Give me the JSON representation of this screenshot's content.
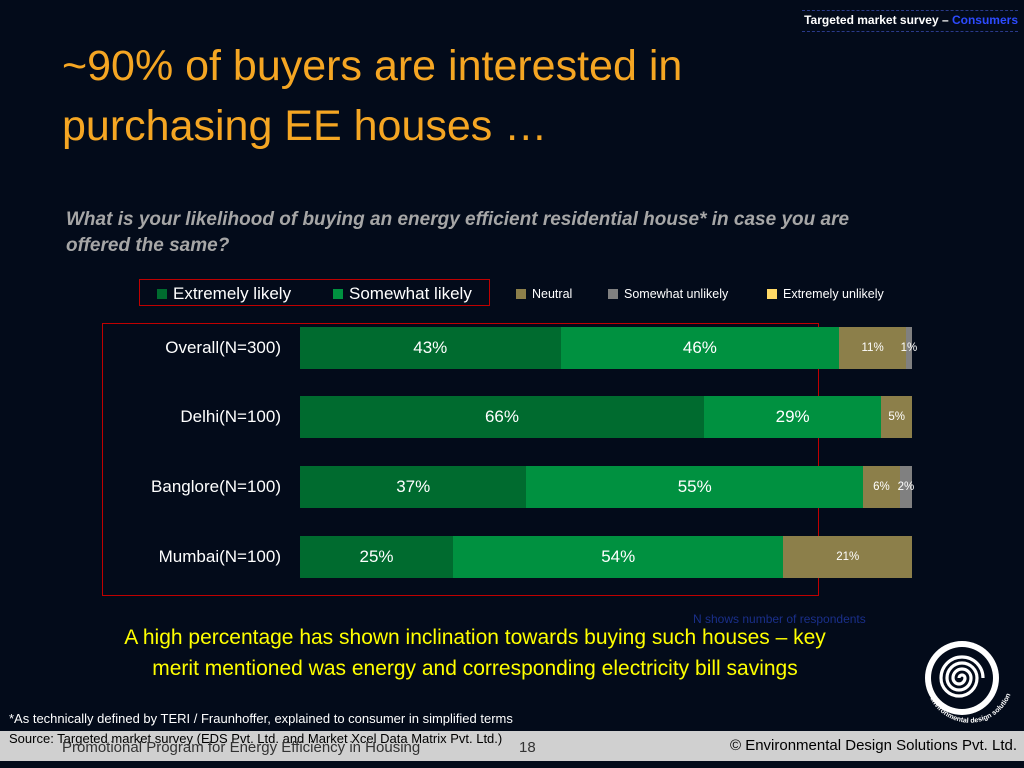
{
  "header": {
    "tag_prefix": "Targeted market survey – ",
    "tag_highlight": "Consumers",
    "title_line1": "~90% of buyers are interested in",
    "title_line2": "purchasing EE houses …"
  },
  "question": "What is your likelihood of buying an energy efficient residential house* in case you are offered the same?",
  "chart_data": {
    "type": "bar",
    "orientation": "horizontal",
    "stacked": true,
    "categories": [
      "Overall(N=300)",
      "Delhi(N=100)",
      "Banglore(N=100)",
      "Mumbai(N=100)"
    ],
    "series": [
      {
        "name": "Extremely likely",
        "values": [
          43,
          66,
          37,
          25
        ],
        "labels": [
          "43%",
          "66%",
          "37%",
          "25%"
        ],
        "color": "#006b2f"
      },
      {
        "name": "Somewhat likely",
        "values": [
          46,
          29,
          55,
          54
        ],
        "labels": [
          "46%",
          "29%",
          "55%",
          "54%"
        ],
        "color": "#009140"
      },
      {
        "name": "Neutral",
        "values": [
          11,
          5,
          6,
          21
        ],
        "labels": [
          "11%",
          "5%",
          "6%",
          "21%"
        ],
        "color": "#8c7f4a"
      },
      {
        "name": "Somewhat unlikely",
        "values": [
          1,
          0,
          2,
          0
        ],
        "labels": [
          "1%",
          "",
          "2%",
          ""
        ],
        "color": "#808080"
      },
      {
        "name": "Extremely unlikely",
        "values": [
          0,
          0,
          0,
          0
        ],
        "labels": [
          "",
          "",
          "",
          ""
        ],
        "color": "#ffd966"
      }
    ],
    "xlim": [
      0,
      100
    ],
    "legend_position": "top"
  },
  "note": "N shows number of respondents",
  "conclusion_line1": "A high percentage has shown inclination towards buying such houses – key",
  "conclusion_line2": "merit mentioned was energy and corresponding electricity bill savings",
  "logo_text": "environmental design solutions",
  "footnote": "*As technically defined by TERI / Fraunhoffer, explained to consumer in simplified terms",
  "source": "Source: Targeted market survey (EDS Pvt. Ltd. and Market Xcel Data Matrix Pvt. Ltd.)",
  "footer": {
    "program": "Promotional Program for Energy Efficiency in Housing",
    "page": "18",
    "copyright": "© Environmental Design Solutions Pvt. Ltd."
  }
}
